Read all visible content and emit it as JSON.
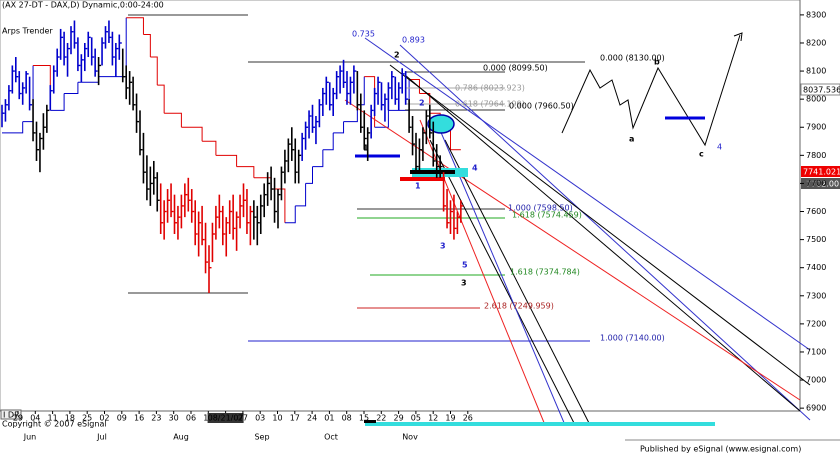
{
  "header": {
    "title": "(AX 27-DT - DAX,D) Dynamic,0:00-24:00",
    "indicator": "Arps Trender"
  },
  "chart_data": {
    "type": "ohlc",
    "ylim": [
      6840,
      8353
    ],
    "yticks": [
      6900,
      7000,
      7100,
      7200,
      7300,
      7400,
      7500,
      7600,
      7700,
      7800,
      7900,
      8000,
      8100,
      8200,
      8300
    ],
    "x_labels": [
      "29",
      "04",
      "11",
      "18",
      "25",
      "02",
      "09",
      "16",
      "23",
      "30",
      "06",
      "13",
      null,
      "27",
      "03",
      "10",
      "17",
      "24",
      "01",
      "08",
      "15",
      "22",
      "29",
      "05",
      "12",
      "19",
      "26"
    ],
    "cursor_date": "08/21/07",
    "months": [
      "Jun",
      "Jul",
      "Aug",
      "Sep",
      "Oct",
      "Nov"
    ],
    "palette": [
      "#0000cc",
      "#000000",
      "#e00000"
    ],
    "bars": [
      [
        7980,
        7900,
        7950,
        0
      ],
      [
        8000,
        7920,
        7980,
        0
      ],
      [
        8050,
        7960,
        8030,
        0
      ],
      [
        8120,
        8020,
        8100,
        0
      ],
      [
        8150,
        8060,
        8080,
        0
      ],
      [
        8100,
        8000,
        8020,
        0
      ],
      [
        8060,
        7980,
        8040,
        0
      ],
      [
        8100,
        8020,
        8090,
        0
      ],
      [
        8080,
        7960,
        7980,
        0
      ],
      [
        8000,
        7850,
        7880,
        1
      ],
      [
        7920,
        7780,
        7820,
        1
      ],
      [
        7880,
        7740,
        7860,
        1
      ],
      [
        7950,
        7820,
        7900,
        1
      ],
      [
        7980,
        7880,
        7960,
        1
      ],
      [
        8050,
        7960,
        8030,
        0
      ],
      [
        8120,
        8020,
        8100,
        0
      ],
      [
        8180,
        8080,
        8150,
        0
      ],
      [
        8250,
        8140,
        8220,
        0
      ],
      [
        8240,
        8120,
        8150,
        0
      ],
      [
        8200,
        8080,
        8180,
        0
      ],
      [
        8260,
        8160,
        8240,
        0
      ],
      [
        8280,
        8180,
        8200,
        0
      ],
      [
        8220,
        8100,
        8120,
        0
      ],
      [
        8160,
        8060,
        8140,
        0
      ],
      [
        8200,
        8100,
        8180,
        0
      ],
      [
        8240,
        8150,
        8220,
        0
      ],
      [
        8220,
        8120,
        8150,
        0
      ],
      [
        8180,
        8080,
        8100,
        0
      ],
      [
        8150,
        8050,
        8120,
        1
      ],
      [
        8220,
        8120,
        8200,
        0
      ],
      [
        8260,
        8180,
        8240,
        0
      ],
      [
        8280,
        8200,
        8220,
        0
      ],
      [
        8240,
        8120,
        8150,
        0
      ],
      [
        8200,
        8080,
        8180,
        0
      ],
      [
        8230,
        8140,
        8200,
        0
      ],
      [
        8180,
        8060,
        8080,
        1
      ],
      [
        8120,
        8000,
        8040,
        1
      ],
      [
        8100,
        7980,
        8060,
        1
      ],
      [
        8080,
        7960,
        7980,
        1
      ],
      [
        8020,
        7880,
        7920,
        1
      ],
      [
        7960,
        7800,
        7820,
        1
      ],
      [
        7880,
        7700,
        7740,
        1
      ],
      [
        7800,
        7640,
        7680,
        1
      ],
      [
        7760,
        7620,
        7700,
        1
      ],
      [
        7780,
        7660,
        7720,
        1
      ],
      [
        7740,
        7600,
        7640,
        1
      ],
      [
        7700,
        7520,
        7560,
        2
      ],
      [
        7640,
        7500,
        7600,
        2
      ],
      [
        7680,
        7560,
        7640,
        2
      ],
      [
        7700,
        7580,
        7600,
        2
      ],
      [
        7660,
        7520,
        7560,
        2
      ],
      [
        7620,
        7500,
        7580,
        2
      ],
      [
        7660,
        7540,
        7620,
        2
      ],
      [
        7700,
        7580,
        7660,
        2
      ],
      [
        7720,
        7600,
        7640,
        2
      ],
      [
        7680,
        7560,
        7600,
        2
      ],
      [
        7640,
        7480,
        7520,
        2
      ],
      [
        7600,
        7440,
        7560,
        2
      ],
      [
        7620,
        7480,
        7500,
        2
      ],
      [
        7560,
        7380,
        7420,
        2
      ],
      [
        7480,
        7310,
        7400,
        2
      ],
      [
        7560,
        7420,
        7520,
        2
      ],
      [
        7620,
        7500,
        7580,
        2
      ],
      [
        7660,
        7540,
        7600,
        2
      ],
      [
        7620,
        7480,
        7520,
        2
      ],
      [
        7580,
        7440,
        7560,
        2
      ],
      [
        7640,
        7520,
        7600,
        2
      ],
      [
        7660,
        7500,
        7540,
        2
      ],
      [
        7600,
        7460,
        7580,
        2
      ],
      [
        7660,
        7540,
        7620,
        2
      ],
      [
        7700,
        7580,
        7640,
        2
      ],
      [
        7680,
        7520,
        7560,
        2
      ],
      [
        7620,
        7480,
        7600,
        2
      ],
      [
        7640,
        7500,
        7580,
        1
      ],
      [
        7620,
        7480,
        7560,
        1
      ],
      [
        7660,
        7520,
        7620,
        1
      ],
      [
        7700,
        7580,
        7660,
        1
      ],
      [
        7740,
        7620,
        7700,
        1
      ],
      [
        7760,
        7640,
        7680,
        1
      ],
      [
        7720,
        7560,
        7600,
        1
      ],
      [
        7680,
        7540,
        7660,
        1
      ],
      [
        7760,
        7640,
        7740,
        1
      ],
      [
        7820,
        7700,
        7780,
        1
      ],
      [
        7860,
        7740,
        7840,
        1
      ],
      [
        7900,
        7780,
        7820,
        1
      ],
      [
        7860,
        7700,
        7740,
        1
      ],
      [
        7820,
        7700,
        7800,
        1
      ],
      [
        7880,
        7780,
        7860,
        0
      ],
      [
        7920,
        7820,
        7900,
        0
      ],
      [
        7960,
        7860,
        7940,
        0
      ],
      [
        7980,
        7880,
        7900,
        0
      ],
      [
        7940,
        7840,
        7920,
        0
      ],
      [
        8000,
        7900,
        7980,
        0
      ],
      [
        8040,
        7940,
        8020,
        0
      ],
      [
        8080,
        7980,
        8060,
        0
      ],
      [
        8060,
        7960,
        7980,
        0
      ],
      [
        8040,
        7940,
        8020,
        0
      ],
      [
        8100,
        8000,
        8080,
        0
      ],
      [
        8120,
        8020,
        8100,
        0
      ],
      [
        8140,
        8040,
        8060,
        0
      ],
      [
        8100,
        7980,
        8020,
        0
      ],
      [
        8080,
        7980,
        8060,
        0
      ],
      [
        8120,
        8020,
        8100,
        0
      ],
      [
        8100,
        7960,
        7980,
        1
      ],
      [
        8020,
        7880,
        7900,
        1
      ],
      [
        7960,
        7820,
        7860,
        1
      ],
      [
        7900,
        7780,
        7880,
        1
      ],
      [
        7980,
        7860,
        7960,
        0
      ],
      [
        8040,
        7940,
        8020,
        0
      ],
      [
        8080,
        7980,
        8060,
        0
      ],
      [
        8060,
        7960,
        7980,
        0
      ],
      [
        8020,
        7920,
        8000,
        0
      ],
      [
        8060,
        7960,
        8040,
        0
      ],
      [
        8100,
        8000,
        8080,
        0
      ],
      [
        8080,
        7980,
        8000,
        0
      ],
      [
        8060,
        7960,
        8040,
        0
      ],
      [
        8110,
        8020,
        8090,
        0
      ],
      [
        8100,
        7980,
        8000,
        0
      ],
      [
        8000,
        7880,
        7900,
        1
      ],
      [
        7940,
        7800,
        7840,
        1
      ],
      [
        7880,
        7740,
        7760,
        1
      ],
      [
        7860,
        7740,
        7820,
        1
      ],
      [
        7900,
        7780,
        7880,
        1
      ],
      [
        7960,
        7840,
        7940,
        1
      ],
      [
        7980,
        7860,
        7880,
        1
      ],
      [
        7920,
        7760,
        7780,
        1
      ],
      [
        7840,
        7720,
        7760,
        1
      ],
      [
        7800,
        7720,
        7760,
        1
      ],
      [
        7740,
        7600,
        7620,
        2
      ],
      [
        7680,
        7540,
        7560,
        2
      ],
      [
        7640,
        7520,
        7600,
        2
      ],
      [
        7660,
        7500,
        7540,
        2
      ],
      [
        7600,
        7520,
        7580,
        2
      ],
      [
        7640,
        7560,
        7620,
        2
      ]
    ],
    "trender": [
      [
        0,
        7880,
        0
      ],
      [
        6,
        7920,
        0
      ],
      [
        9,
        8120,
        2
      ],
      [
        14,
        7960,
        0
      ],
      [
        18,
        8020,
        0
      ],
      [
        22,
        8060,
        0
      ],
      [
        28,
        8080,
        0
      ],
      [
        36,
        8290,
        2
      ],
      [
        41,
        8230,
        2
      ],
      [
        43,
        8150,
        2
      ],
      [
        45,
        8050,
        2
      ],
      [
        47,
        7950,
        2
      ],
      [
        52,
        7900,
        2
      ],
      [
        58,
        7850,
        2
      ],
      [
        62,
        7800,
        2
      ],
      [
        68,
        7760,
        2
      ],
      [
        73,
        7720,
        2
      ],
      [
        78,
        7680,
        2
      ],
      [
        82,
        7560,
        0
      ],
      [
        85,
        7620,
        0
      ],
      [
        88,
        7700,
        0
      ],
      [
        90,
        7760,
        0
      ],
      [
        93,
        7820,
        0
      ],
      [
        96,
        7880,
        0
      ],
      [
        99,
        7920,
        0
      ],
      [
        103,
        7980,
        0
      ],
      [
        105,
        8080,
        2
      ],
      [
        108,
        7900,
        0
      ],
      [
        112,
        7960,
        0
      ],
      [
        118,
        8070,
        2
      ],
      [
        121,
        8020,
        2
      ],
      [
        124,
        7950,
        2
      ],
      [
        127,
        7900,
        2
      ],
      [
        130,
        7820,
        2
      ]
    ]
  },
  "annotations": {
    "fib": [
      "0.735",
      "0.893",
      "0.000 (8099.50)",
      "0.786 (8023.923)",
      "0.618 (7964.199)",
      "0.000 (7960.50)",
      "0.000 (8130.00)",
      "1.000 (7598.50)",
      "1.618 (7574.459)",
      "1.618 (7374.784)",
      "2.618 (7249.959)",
      "1.000 (7140.00)"
    ],
    "waves": [
      "2",
      "1",
      "2",
      "1",
      "4",
      "3",
      "5",
      "3"
    ],
    "scenario": [
      "a",
      "b",
      "c",
      "4"
    ]
  },
  "price_labels": [
    "8037.5361",
    "7741.02169",
    "7702.00"
  ],
  "footer": {
    "publisher": "Published by eSignal (www.esignal.com)",
    "copyright": "Copyright © 2007 eSignal",
    "logo": "I DR"
  }
}
